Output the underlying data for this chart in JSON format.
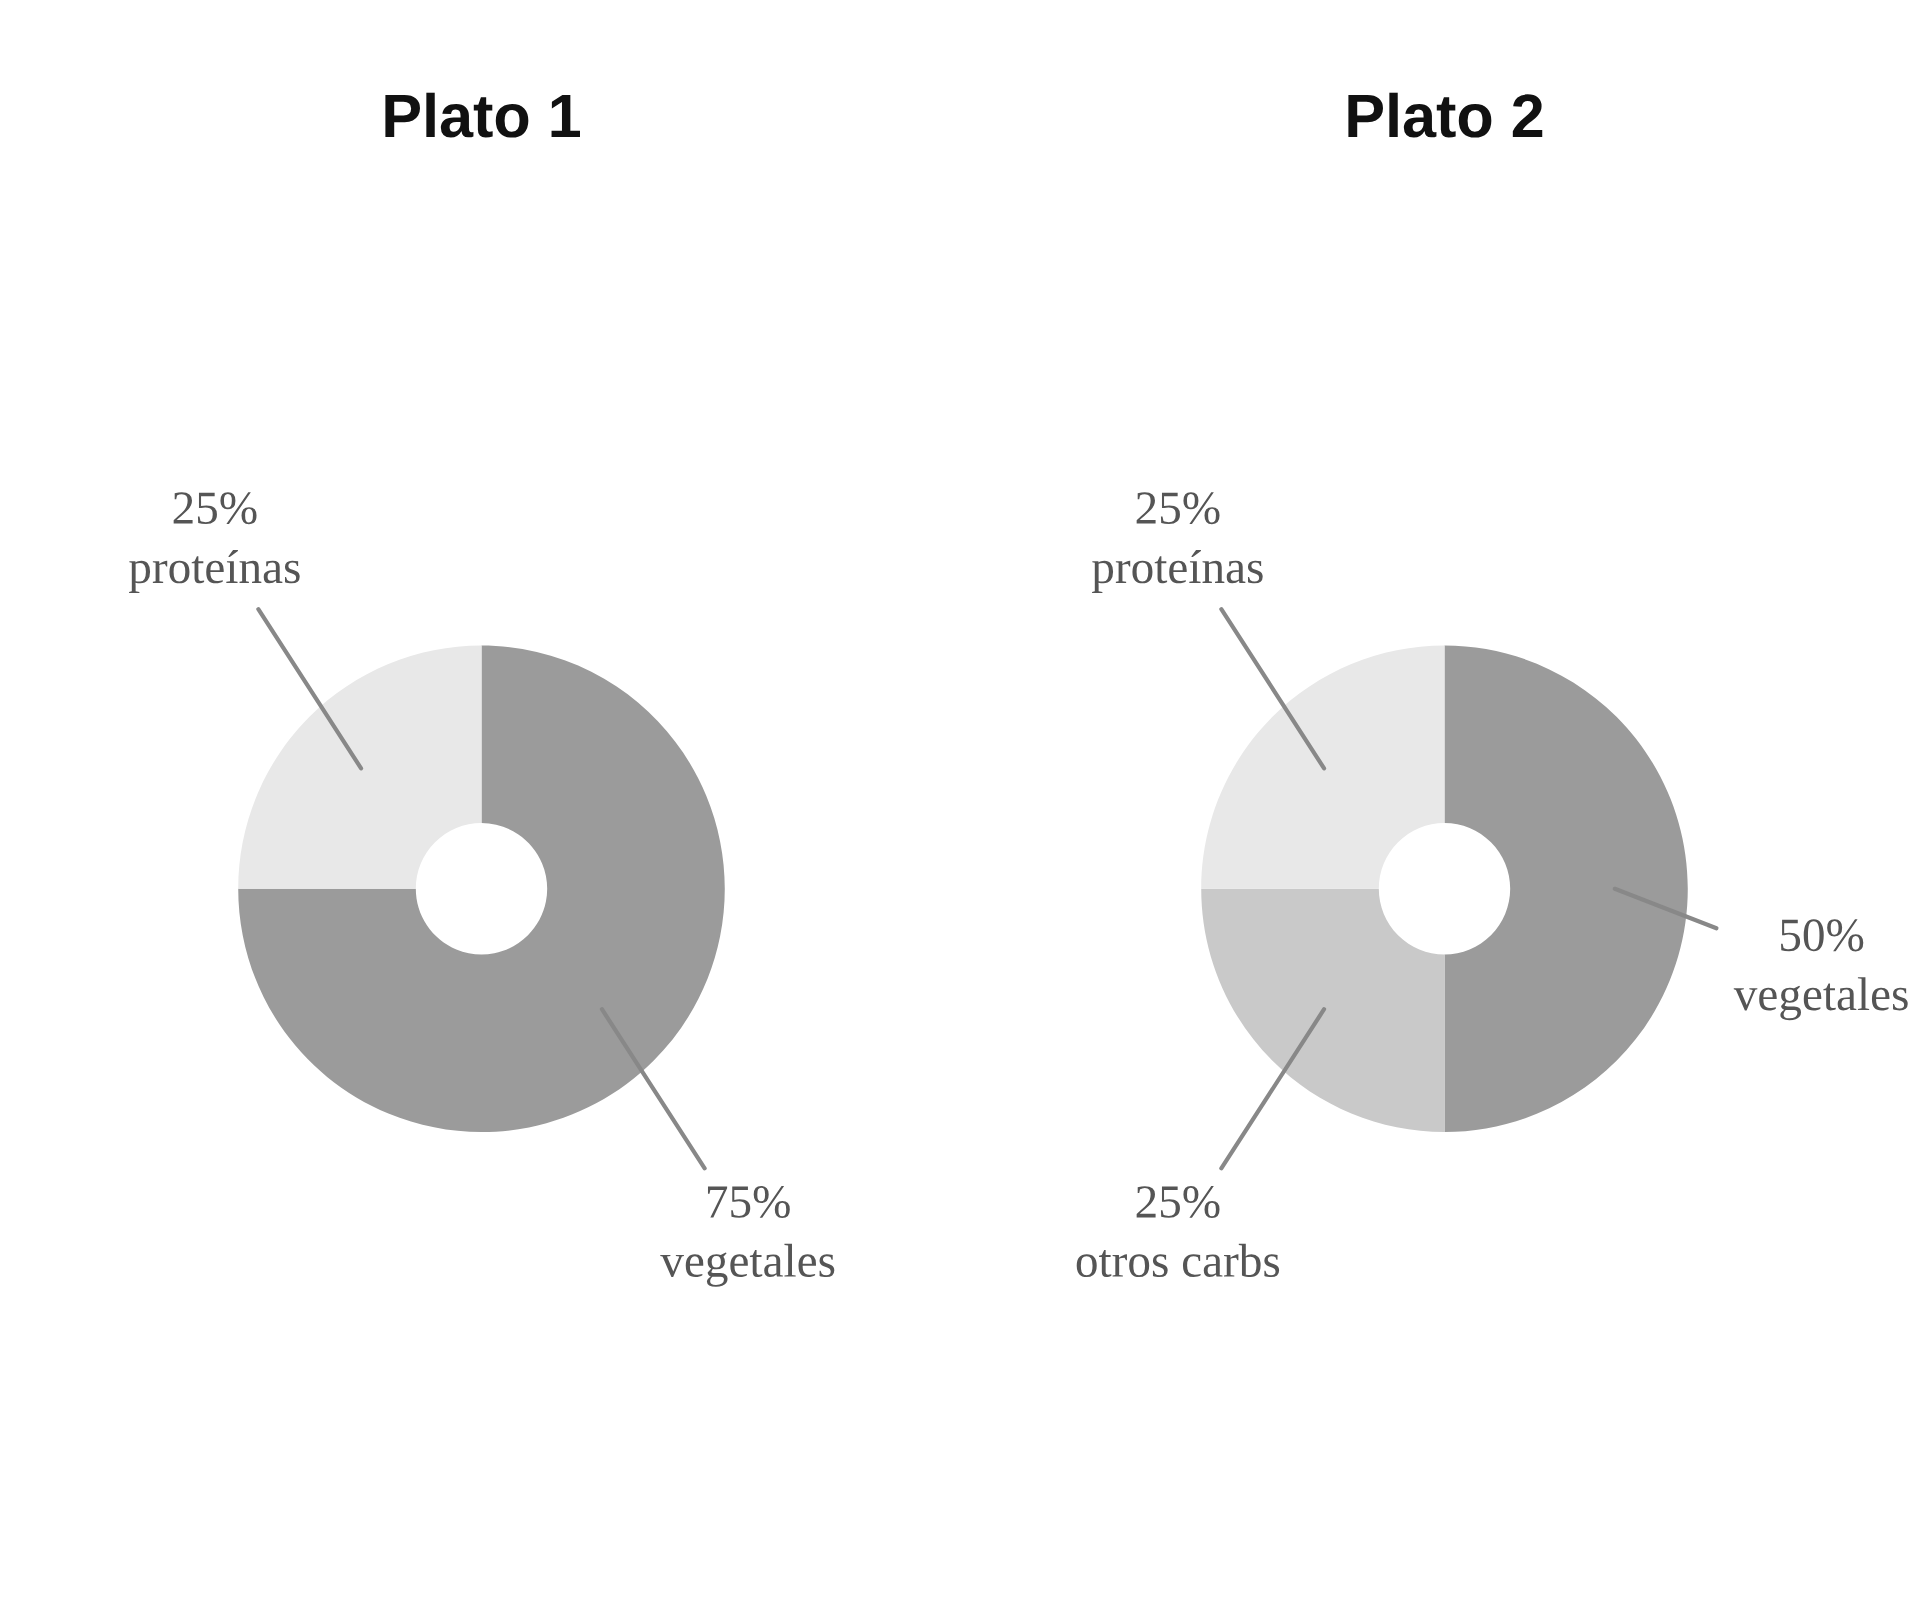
{
  "chart_data": [
    {
      "type": "donut",
      "title": "Plato 1",
      "categories": [
        "vegetales",
        "proteínas"
      ],
      "values": [
        75,
        25
      ],
      "value_labels": [
        "75%",
        "25%"
      ],
      "colors": [
        "#9b9b9b",
        "#e8e8e8"
      ]
    },
    {
      "type": "donut",
      "title": "Plato 2",
      "categories": [
        "vegetales",
        "otros carbs",
        "proteínas"
      ],
      "values": [
        50,
        25,
        25
      ],
      "value_labels": [
        "50%",
        "25%",
        "25%"
      ],
      "colors": [
        "#9b9b9b",
        "#c9c9c9",
        "#e8e8e8"
      ]
    }
  ]
}
